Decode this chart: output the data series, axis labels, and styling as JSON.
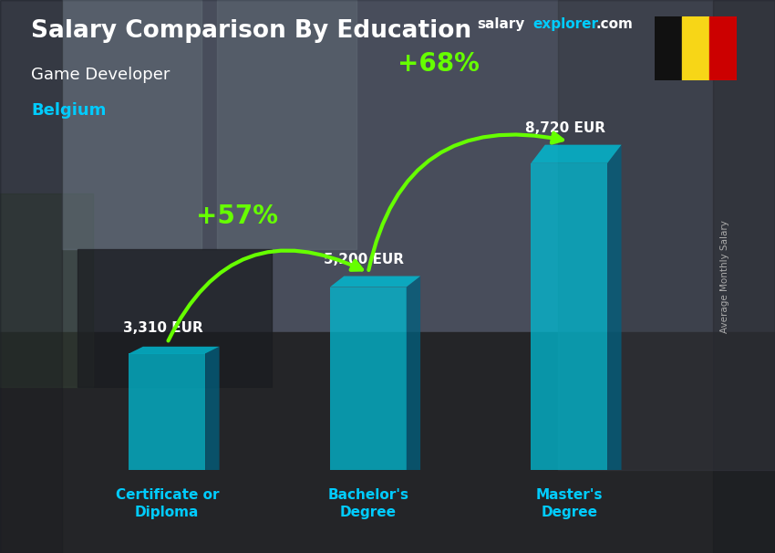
{
  "title": "Salary Comparison By Education",
  "subtitle_job": "Game Developer",
  "subtitle_country": "Belgium",
  "website_salary": "salary",
  "website_explorer": "explorer",
  "website_com": ".com",
  "ylabel": "Average Monthly Salary",
  "categories": [
    "Certificate or\nDiploma",
    "Bachelor's\nDegree",
    "Master's\nDegree"
  ],
  "values": [
    3310,
    5200,
    8720
  ],
  "value_labels": [
    "3,310 EUR",
    "5,200 EUR",
    "8,720 EUR"
  ],
  "pct_labels": [
    "+57%",
    "+68%"
  ],
  "bar_color_front": "#00bcd4",
  "bar_color_front_alpha": 0.75,
  "bar_color_side": "#006080",
  "bar_color_side_alpha": 0.75,
  "title_color": "#ffffff",
  "subtitle_job_color": "#ffffff",
  "subtitle_country_color": "#00ccff",
  "value_label_color": "#ffffff",
  "pct_label_color": "#66ff00",
  "arrow_color": "#66ff00",
  "xlabel_color": "#00ccff",
  "ylabel_color": "#aaaaaa",
  "website_color1": "#ffffff",
  "website_color2": "#00ccff",
  "flag_colors": [
    "#111111",
    "#f7d617",
    "#cc0000"
  ],
  "ylim": [
    0,
    11000
  ],
  "bar_width": 0.38,
  "x_positions": [
    1.0,
    2.0,
    3.0
  ],
  "xlim": [
    0.4,
    3.6
  ]
}
